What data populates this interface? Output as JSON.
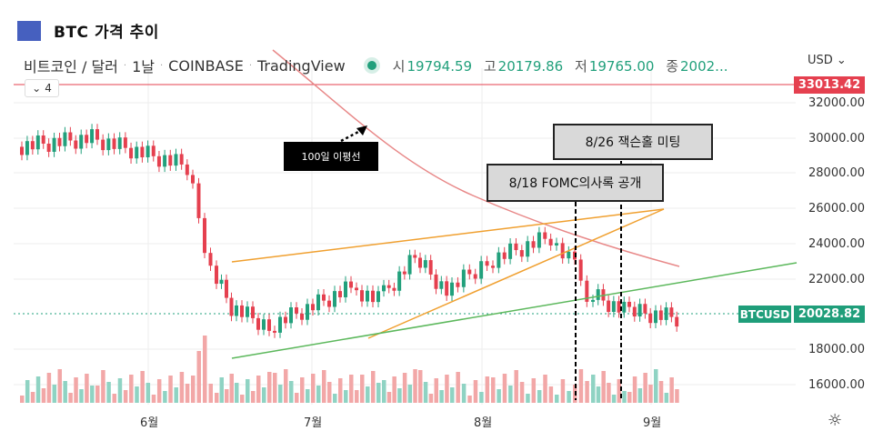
{
  "header": {
    "title": "BTC 가격 추이",
    "accent": "#4660bf"
  },
  "legend": {
    "symbol": "비트코인 / 달러",
    "interval": "1날",
    "exchange": "COINBASE",
    "source": "TradingView",
    "open_label": "시",
    "open": "19794.59",
    "high_label": "고",
    "high": "20179.86",
    "low_label": "저",
    "low": "19765.00",
    "close_label": "종",
    "close": "2002..."
  },
  "collapse": {
    "count": "4"
  },
  "axis": {
    "currency": "USD ⌄",
    "ticks": [
      "32000.00",
      "30000.00",
      "28000.00",
      "26000.00",
      "24000.00",
      "22000.00",
      "18000.00",
      "16000.00"
    ],
    "months": [
      "6월",
      "7월",
      "8월",
      "9월"
    ]
  },
  "tags": {
    "high_line": "33013.42",
    "symbol": "BTCUSD",
    "last_price": "20028.82",
    "up_color": "#22a07c",
    "down_color": "#e5404f"
  },
  "annotations": {
    "ma_note": "100일 이평선",
    "event1": "8/18 FOMC의사록 공개",
    "event2": "8/26 잭슨홀 미팅"
  },
  "chart_data": {
    "type": "candlestick",
    "title": "BTC 가격 추이",
    "subtitle": "비트코인 / 달러 · 1날 · COINBASE",
    "xlabel": "",
    "ylabel": "USD",
    "x_ticks": [
      "6월",
      "7월",
      "8월",
      "9월"
    ],
    "y_ticks": [
      16000,
      18000,
      20000,
      22000,
      24000,
      26000,
      28000,
      30000,
      32000
    ],
    "ylim": [
      15000,
      34000
    ],
    "horizontal_lines": [
      {
        "label": "high",
        "value": 33013.42
      },
      {
        "label": "last",
        "value": 20028.82
      }
    ],
    "last_ohlc": {
      "open": 19794.59,
      "high": 20179.86,
      "low": 19765.0,
      "close": 20028.82
    },
    "approx_closes_by_period": {
      "mid_may": 29500,
      "early_june": 30000,
      "june_10": 28400,
      "june_14": 22500,
      "june_18": 20400,
      "early_july": 19300,
      "july_8": 21500,
      "mid_july": 20800,
      "july_20": 23200,
      "late_july": 21300,
      "early_aug": 23000,
      "aug_14": 24400,
      "aug_18": 23300,
      "aug_19": 21200,
      "aug_26": 20200,
      "early_sep": 19800
    },
    "annotations": [
      "100일 이평선",
      "8/18 FOMC의사록 공개",
      "8/26 잭슨홀 미팅"
    ]
  }
}
